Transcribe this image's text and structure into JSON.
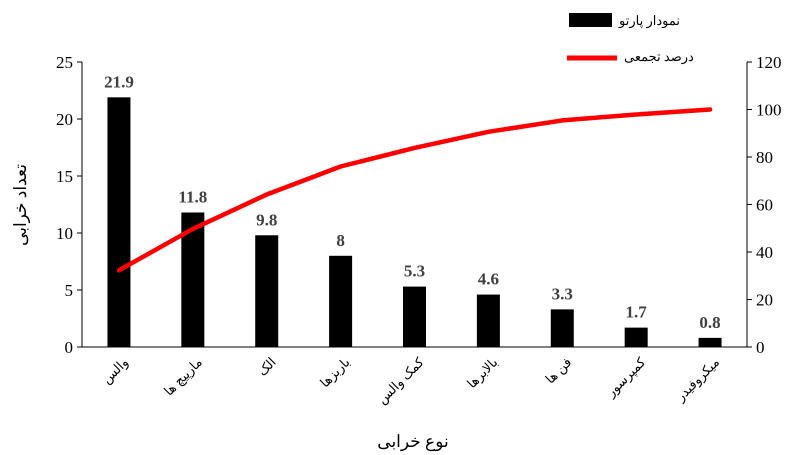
{
  "chart_data": {
    "type": "bar",
    "title": "",
    "categories": [
      "والس",
      "مارپیچ ها",
      "الک",
      "باربزها",
      "کمک والس",
      "بالابرها",
      "فن ها",
      "کمپرسور",
      "میکروفیدر"
    ],
    "series": [
      {
        "name": "نمودار پارتو",
        "type": "bar",
        "axis": "left",
        "color": "#000000",
        "values": [
          21.9,
          11.8,
          9.8,
          8,
          5.3,
          4.6,
          3.3,
          1.7,
          0.8
        ]
      },
      {
        "name": "درصد تجمعی",
        "type": "line",
        "axis": "right",
        "color": "#ff0000",
        "values": [
          32.3,
          49.7,
          64.2,
          76.0,
          83.8,
          90.6,
          95.4,
          97.9,
          100
        ]
      }
    ],
    "data_labels": [
      "21.9",
      "11.8",
      "9.8",
      "8",
      "5.3",
      "4.6",
      "3.3",
      "1.7",
      "0.8"
    ],
    "xlabel": "نوع خرابی",
    "ylabel": "تعداد خرابی",
    "ylim": [
      0,
      25
    ],
    "y_ticks": [
      0,
      5,
      10,
      15,
      20,
      25
    ],
    "y2lim": [
      0,
      120
    ],
    "y2_ticks": [
      0,
      20,
      40,
      60,
      80,
      100,
      120
    ],
    "grid": false,
    "legend_position": "top-right"
  }
}
